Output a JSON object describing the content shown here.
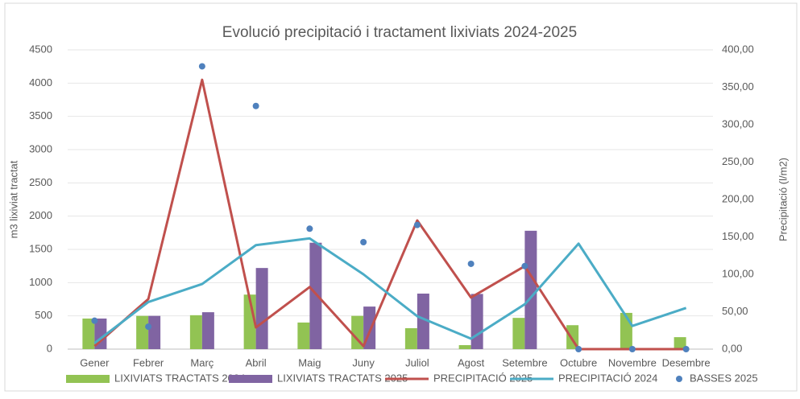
{
  "chart_data": {
    "type": "bar",
    "title": "Evolució precipitació i tractament lixiviats 2024-2025",
    "categories": [
      "Gener",
      "Febrer",
      "Març",
      "Abril",
      "Maig",
      "Juny",
      "Juliol",
      "Agost",
      "Setembre",
      "Octubre",
      "Novembre",
      "Desembre"
    ],
    "ylabel": "m3 lixiviat tractat",
    "y2label": "Precipitació (l/m2)",
    "ylim": [
      0,
      4500
    ],
    "yticks": [
      0,
      500,
      1000,
      1500,
      2000,
      2500,
      3000,
      3500,
      4000,
      4500
    ],
    "y2lim": [
      0,
      400
    ],
    "y2ticks": [
      {
        "value": 0,
        "label": "0,00"
      },
      {
        "value": 50,
        "label": "50,00"
      },
      {
        "value": 100,
        "label": "100,00"
      },
      {
        "value": 150,
        "label": "150,00"
      },
      {
        "value": 200,
        "label": "200,00"
      },
      {
        "value": 250,
        "label": "250,00"
      },
      {
        "value": 300,
        "label": "300,00"
      },
      {
        "value": 350,
        "label": "350,00"
      },
      {
        "value": 400,
        "label": "400,00"
      }
    ],
    "grid": true,
    "legend": "bottom",
    "series": [
      {
        "name": "LIXIVIATS TRACTATS 2024",
        "type": "bar",
        "color": "#92c353",
        "values": [
          460,
          500,
          510,
          820,
          400,
          500,
          315,
          60,
          470,
          360,
          545,
          180
        ]
      },
      {
        "name": "LIXIVIATS TRACTATS 2025",
        "type": "bar",
        "color": "#8064a2",
        "values": [
          460,
          500,
          555,
          1220,
          1600,
          640,
          835,
          830,
          1780,
          null,
          null,
          null
        ]
      },
      {
        "name": "PRECIPITACIÓ 2025",
        "type": "line",
        "axis": "y2",
        "color": "#c0504d",
        "values": [
          4,
          67,
          360,
          29,
          83,
          4,
          172,
          69,
          111,
          0,
          0,
          0
        ]
      },
      {
        "name": "PRECIPITACIÓ 2024",
        "type": "line",
        "axis": "y2",
        "color": "#4bacc6",
        "values": [
          8,
          63,
          87,
          139,
          148,
          100,
          44,
          14,
          60,
          141,
          31,
          55
        ]
      },
      {
        "name": "BASSES 2025",
        "type": "scatter",
        "axis": "y2",
        "color": "#4f81bd",
        "values": [
          38,
          30,
          378,
          325,
          161,
          143,
          166,
          114,
          111,
          0,
          0,
          0
        ]
      }
    ]
  }
}
